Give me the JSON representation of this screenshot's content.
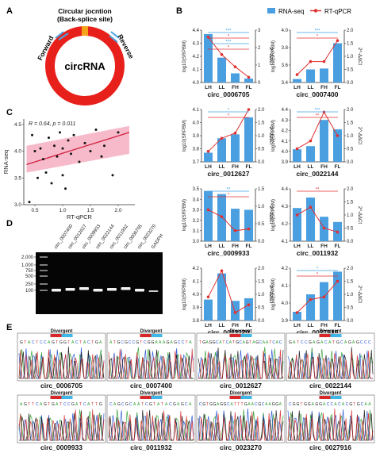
{
  "panels": {
    "a": "A",
    "b": "B",
    "c": "C",
    "d": "D",
    "e": "E"
  },
  "panel_a": {
    "center": "circRNA",
    "junction_line1": "Circular jocntion",
    "junction_line2": "(Back-splice site)",
    "forward": "Forward",
    "reverse": "Reverse",
    "colors": {
      "ring": "#e8201c",
      "junction": "#f5a31a",
      "primer": "#4aa3df"
    }
  },
  "panel_b": {
    "legend": {
      "rna": "RNA-seq",
      "qpcr": "RT-qPCR"
    },
    "colors": {
      "bar": "#4a9fe0",
      "line": "#e03030",
      "sig_blue": "#3fa2e6",
      "sig_red": "#e03030"
    },
    "ylabel_left": "log10(SRPBM)",
    "ylabel_right": "2^-ΔΔCt"
  },
  "chart_data": [
    {
      "type": "bar",
      "title": "circ_0006705",
      "categories": [
        "LH",
        "LL",
        "FH",
        "FL"
      ],
      "series": [
        {
          "name": "RNA-seq",
          "values": [
            4.37,
            4.19,
            4.07,
            4.03
          ]
        },
        {
          "name": "RT-qPCR",
          "values": [
            2.6,
            1.6,
            0.9,
            0.3
          ]
        }
      ],
      "ylim": [
        4.0,
        4.4
      ],
      "yticks": [
        "4.0",
        "4.1",
        "4.2",
        "4.3",
        "4.4"
      ],
      "y2lim": [
        0,
        3
      ],
      "y2ticks": [
        "0",
        "1",
        "2",
        "3"
      ],
      "sig": [
        {
          "text": "***",
          "color": "blue"
        },
        {
          "text": "*",
          "color": "red"
        },
        {
          "text": "***",
          "color": "blue"
        },
        {
          "text": "*",
          "color": "red"
        }
      ]
    },
    {
      "type": "bar",
      "title": "circ_0007400",
      "categories": [
        "LH",
        "LL",
        "FH",
        "FL"
      ],
      "series": [
        {
          "name": "RNA-seq",
          "values": [
            3.44,
            3.55,
            3.56,
            3.85
          ]
        },
        {
          "name": "RT-qPCR",
          "values": [
            0.3,
            0.8,
            0.8,
            1.6
          ]
        }
      ],
      "ylim": [
        3.4,
        4.0
      ],
      "yticks": [
        "3.4",
        "3.6",
        "3.8",
        "4.0"
      ],
      "y2lim": [
        0,
        2.0
      ],
      "y2ticks": [
        "0.0",
        "0.5",
        "1.0",
        "1.5",
        "2.0"
      ],
      "sig": [
        {
          "text": "***",
          "color": "blue"
        },
        {
          "text": "*",
          "color": "red"
        }
      ]
    },
    {
      "type": "bar",
      "title": "circ_0012627",
      "categories": [
        "LH",
        "LL",
        "FH",
        "FL"
      ],
      "series": [
        {
          "name": "RNA-seq",
          "values": [
            3.77,
            3.88,
            3.91,
            4.04
          ]
        },
        {
          "name": "RT-qPCR",
          "values": [
            0.4,
            0.9,
            1.1,
            2.0
          ]
        }
      ],
      "ylim": [
        3.7,
        4.1
      ],
      "yticks": [
        "3.7",
        "3.8",
        "3.9",
        "4.0",
        "4.1"
      ],
      "y2lim": [
        0,
        2.0
      ],
      "y2ticks": [
        "0.0",
        "0.5",
        "1.0",
        "1.5",
        "2.0"
      ],
      "sig": [
        {
          "text": "*",
          "color": "blue"
        },
        {
          "text": "*",
          "color": "red"
        }
      ]
    },
    {
      "type": "bar",
      "title": "circ_0022144",
      "categories": [
        "LH",
        "LL",
        "FH",
        "FL"
      ],
      "series": [
        {
          "name": "RNA-seq",
          "values": [
            4.02,
            4.05,
            4.3,
            4.21
          ]
        },
        {
          "name": "RT-qPCR",
          "values": [
            0.5,
            0.8,
            1.9,
            1.0
          ]
        }
      ],
      "ylim": [
        3.9,
        4.4
      ],
      "yticks": [
        "3.9",
        "4.0",
        "4.1",
        "4.2",
        "4.3",
        "4.4"
      ],
      "y2lim": [
        0,
        2.0
      ],
      "y2ticks": [
        "0.0",
        "0.5",
        "1.0",
        "1.5",
        "2.0"
      ],
      "sig": [
        {
          "text": "***",
          "color": "blue"
        },
        {
          "text": "**",
          "color": "red"
        }
      ]
    },
    {
      "type": "bar",
      "title": "circ_0009933",
      "categories": [
        "LH",
        "LL",
        "FH",
        "FL"
      ],
      "series": [
        {
          "name": "RNA-seq",
          "values": [
            3.48,
            3.45,
            3.31,
            3.3
          ]
        },
        {
          "name": "RT-qPCR",
          "values": [
            0.9,
            0.7,
            0.3,
            0.35
          ]
        }
      ],
      "ylim": [
        3.0,
        3.5
      ],
      "yticks": [
        "3.0",
        "3.1",
        "3.2",
        "3.3",
        "3.4",
        "3.5"
      ],
      "y2lim": [
        0,
        1.5
      ],
      "y2ticks": [
        "0.0",
        "0.5",
        "1.0",
        "1.5"
      ],
      "sig": [
        {
          "text": "**",
          "color": "blue"
        },
        {
          "text": "*",
          "color": "red"
        }
      ]
    },
    {
      "type": "bar",
      "title": "circ_0011932",
      "categories": [
        "LH",
        "LL",
        "FH",
        "FL"
      ],
      "series": [
        {
          "name": "RNA-seq",
          "values": [
            4.29,
            4.35,
            4.24,
            4.21
          ]
        },
        {
          "name": "RT-qPCR",
          "values": [
            1.0,
            1.3,
            0.5,
            0.35
          ]
        }
      ],
      "ylim": [
        4.1,
        4.4
      ],
      "yticks": [
        "4.1",
        "4.2",
        "4.3",
        "4.4"
      ],
      "y2lim": [
        0,
        2.0
      ],
      "y2ticks": [
        "0.0",
        "0.5",
        "1.0",
        "1.5",
        "2.0"
      ],
      "sig": [
        {
          "text": "**",
          "color": "red"
        }
      ]
    },
    {
      "type": "bar",
      "title": "circ_0023270",
      "categories": [
        "LH",
        "LL",
        "FH",
        "FL"
      ],
      "series": [
        {
          "name": "RNA-seq",
          "values": [
            3.96,
            4.16,
            3.95,
            3.97
          ]
        },
        {
          "name": "RT-qPCR",
          "values": [
            0.9,
            1.9,
            0.3,
            0.6
          ]
        }
      ],
      "ylim": [
        3.8,
        4.2
      ],
      "yticks": [
        "3.8",
        "3.9",
        "4.0",
        "4.1",
        "4.2"
      ],
      "y2lim": [
        0,
        2.0
      ],
      "y2ticks": [
        "0.0",
        "0.5",
        "1.0",
        "1.5",
        "2.0"
      ],
      "sig": []
    },
    {
      "type": "bar",
      "title": "circ_0027916",
      "categories": [
        "LH",
        "LL",
        "FH",
        "FL"
      ],
      "series": [
        {
          "name": "RNA-seq",
          "values": [
            3.95,
            4.05,
            4.12,
            4.18
          ]
        },
        {
          "name": "RT-qPCR",
          "values": [
            0.3,
            0.8,
            0.9,
            1.5
          ]
        }
      ],
      "ylim": [
        3.9,
        4.2
      ],
      "yticks": [
        "3.9",
        "4.0",
        "4.1",
        "4.2"
      ],
      "y2lim": [
        0,
        2.0
      ],
      "y2ticks": [
        "0.0",
        "0.5",
        "1.0",
        "1.5",
        "2.0"
      ],
      "sig": [
        {
          "text": "*",
          "color": "blue"
        },
        {
          "text": "*",
          "color": "red"
        }
      ]
    },
    {
      "type": "scatter",
      "annotation": "R = 0.64, p = 0.011",
      "xlabel": "RT-qPCR",
      "ylabel": "RNA-seq",
      "xlim": [
        0.3,
        2.3
      ],
      "ylim": [
        3.0,
        4.6
      ],
      "xticks": [
        "0.5",
        "1.0",
        "1.5",
        "2.0"
      ],
      "yticks": [
        "3.0",
        "3.5",
        "4.0",
        "4.5"
      ],
      "points": [
        [
          0.45,
          4.3
        ],
        [
          0.5,
          4.0
        ],
        [
          0.55,
          3.5
        ],
        [
          0.6,
          4.05
        ],
        [
          0.65,
          3.85
        ],
        [
          0.7,
          3.6
        ],
        [
          0.75,
          4.25
        ],
        [
          0.8,
          3.4
        ],
        [
          0.85,
          4.1
        ],
        [
          0.9,
          3.9
        ],
        [
          0.95,
          4.35
        ],
        [
          1.0,
          3.55
        ],
        [
          1.0,
          4.05
        ],
        [
          1.05,
          3.3
        ],
        [
          1.1,
          4.2
        ],
        [
          1.15,
          3.95
        ],
        [
          1.2,
          4.3
        ],
        [
          1.3,
          3.8
        ],
        [
          1.4,
          4.15
        ],
        [
          1.5,
          4.0
        ],
        [
          1.6,
          4.4
        ],
        [
          1.7,
          3.9
        ],
        [
          1.75,
          4.1
        ],
        [
          1.9,
          3.55
        ],
        [
          2.0,
          4.35
        ],
        [
          0.4,
          3.05
        ]
      ],
      "fit": [
        [
          0.35,
          3.75
        ],
        [
          2.2,
          4.35
        ]
      ]
    },
    {
      "type": "gel",
      "ladder_labels": [
        "2,000",
        "1,000",
        "750",
        "500",
        "250",
        "100"
      ],
      "lane_labels": [
        "circ_0007400",
        "circ_0012627",
        "circ_0009933",
        "circ_0022144",
        "circ_0011932",
        "circ_0006705",
        "circ_0023270",
        "GADPH"
      ]
    }
  ],
  "panel_e": {
    "label": "Divergent",
    "names": [
      "circ_0006705",
      "circ_0007400",
      "circ_0012627",
      "circ_0022144",
      "circ_0009933",
      "circ_0011932",
      "circ_0023270",
      "circ_0027916"
    ],
    "seqs": [
      "GTACTCCAGTGGTACTACTGA",
      "ATGCGCCGTCGGAAAGAGCCTA",
      "TGAGGCATCATGCAGTAGCAATCAC",
      "GATCCGAGACATGCAGAGCCC",
      "AGTTCAGTGATCCGATCATTG",
      "CAGCGCAATCGTATACGAGCA",
      "CGTGGAGGCATTTGAACGCAAGGA",
      "CGGTGGAGGACCACACGTGCAA"
    ]
  }
}
